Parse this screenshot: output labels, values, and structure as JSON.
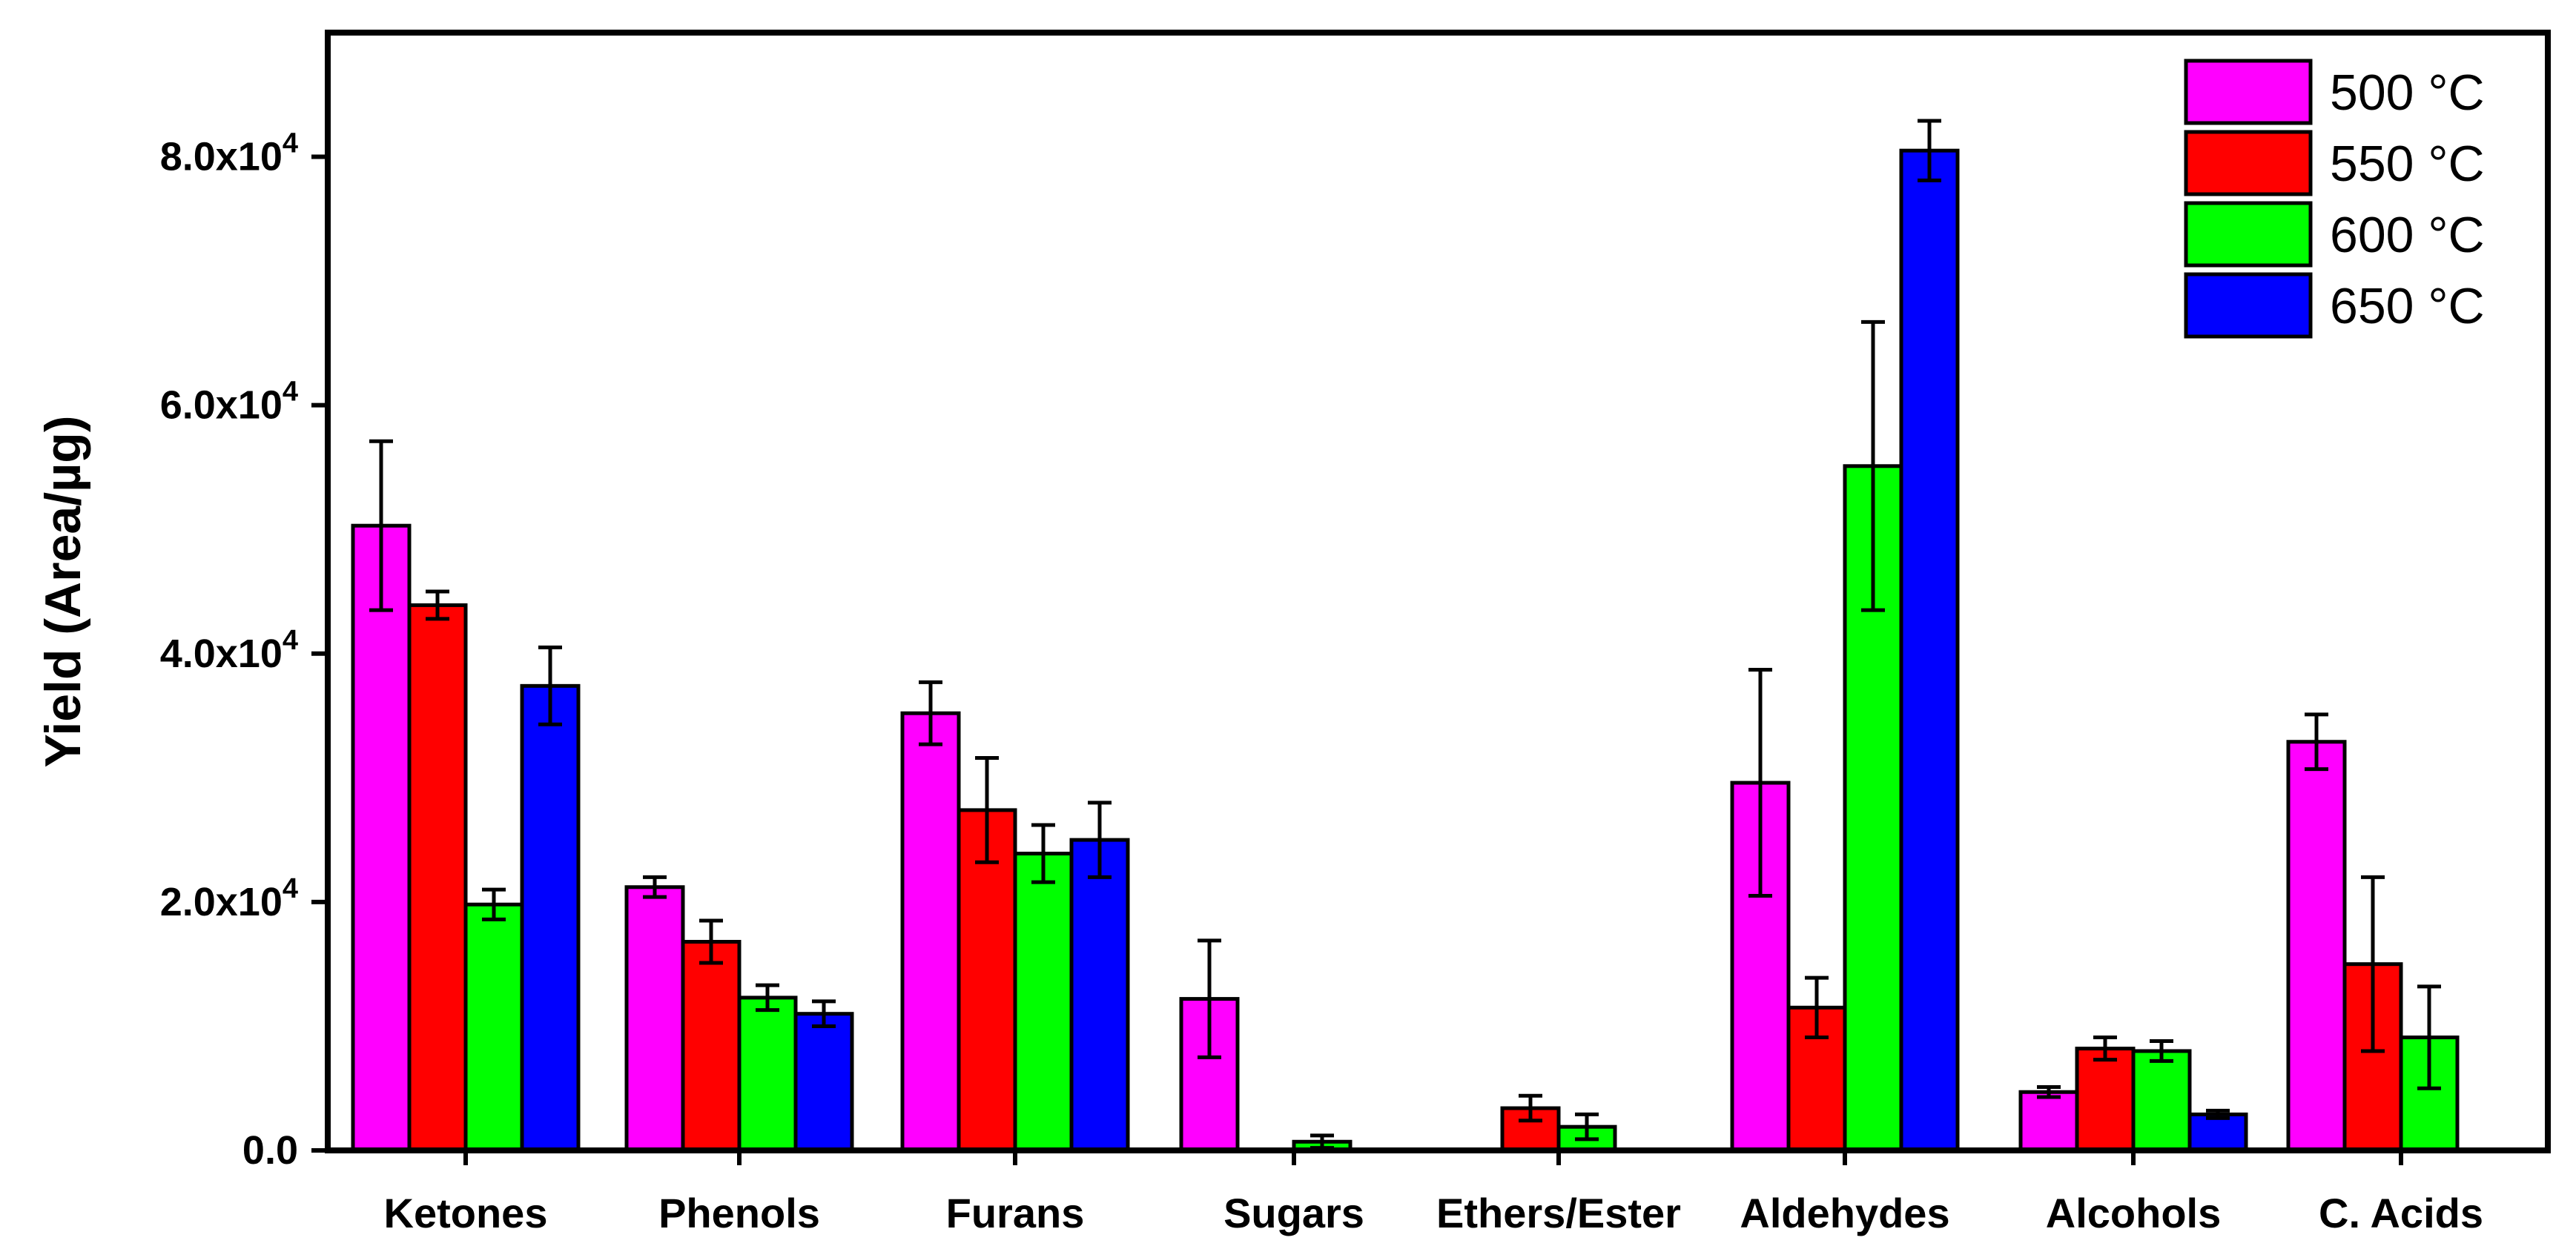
{
  "chart_data": {
    "type": "bar",
    "title": "",
    "xlabel": "",
    "ylabel": "Yield (Area/µg)",
    "ylim": [
      0,
      90000
    ],
    "yticks": [
      0,
      20000,
      40000,
      60000,
      80000
    ],
    "ytick_labels": [
      {
        "mantissa": "0.0",
        "exp": ""
      },
      {
        "mantissa": "2.0x10",
        "exp": "4"
      },
      {
        "mantissa": "4.0x10",
        "exp": "4"
      },
      {
        "mantissa": "6.0x10",
        "exp": "4"
      },
      {
        "mantissa": "8.0x10",
        "exp": "4"
      }
    ],
    "categories": [
      "Ketones",
      "Phenols",
      "Furans",
      "Sugars",
      "Ethers/Ester",
      "Aldehydes",
      "Alcohols",
      "C. Acids"
    ],
    "legend_position": "top-right",
    "grid": false,
    "series": [
      {
        "name": "500 °C",
        "color": "#ff00ff",
        "values": [
          50300,
          21200,
          35200,
          12200,
          0,
          29600,
          4700,
          32900
        ],
        "errors": [
          6800,
          800,
          2500,
          4700,
          0,
          9100,
          400,
          2200
        ]
      },
      {
        "name": "550 °C",
        "color": "#ff0000",
        "values": [
          43900,
          16800,
          27400,
          0,
          3400,
          11500,
          8200,
          15000
        ],
        "errors": [
          1100,
          1700,
          4200,
          0,
          1000,
          2400,
          900,
          7000
        ]
      },
      {
        "name": "600 °C",
        "color": "#00ff00",
        "values": [
          19800,
          12300,
          23900,
          700,
          1900,
          55100,
          8000,
          9100
        ],
        "errors": [
          1200,
          1000,
          2300,
          500,
          1000,
          11600,
          800,
          4100
        ]
      },
      {
        "name": "650 °C",
        "color": "#0000ff",
        "values": [
          37400,
          11000,
          25000,
          0,
          0,
          80500,
          2900,
          0
        ],
        "errors": [
          3100,
          1000,
          3000,
          0,
          0,
          2400,
          300,
          0
        ]
      }
    ]
  }
}
